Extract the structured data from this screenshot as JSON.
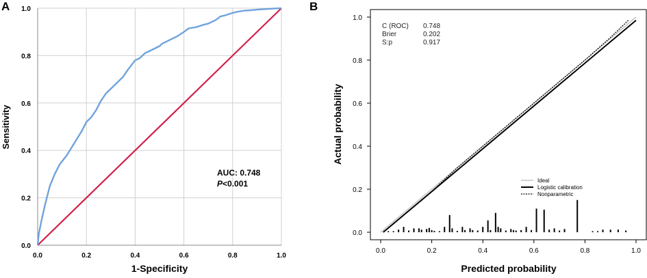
{
  "chart_data": [
    {
      "type": "line",
      "panel_label": "A",
      "title": "",
      "xlabel": "1-Specificity",
      "ylabel": "Sensitivity",
      "xlim": [
        0,
        1
      ],
      "ylim": [
        0,
        1
      ],
      "x_ticks": [
        "0.0",
        "0.2",
        "0.4",
        "0.6",
        "0.8",
        "1.0"
      ],
      "y_ticks": [
        "0.0",
        "0.2",
        "0.4",
        "0.6",
        "0.8",
        "1.0"
      ],
      "grid": true,
      "annotation": {
        "auc": "AUC: 0.748",
        "p_prefix": "P",
        "p_rest": "<0.001"
      },
      "colors": {
        "roc": "#6fa3dc",
        "reference": "#d21f4a",
        "grid": "#d0d0d0"
      },
      "series": [
        {
          "name": "ROC curve",
          "x": [
            0.0,
            0.005,
            0.015,
            0.03,
            0.05,
            0.07,
            0.09,
            0.12,
            0.15,
            0.18,
            0.2,
            0.22,
            0.24,
            0.26,
            0.28,
            0.3,
            0.31,
            0.33,
            0.35,
            0.37,
            0.4,
            0.42,
            0.44,
            0.46,
            0.48,
            0.5,
            0.51,
            0.53,
            0.55,
            0.57,
            0.6,
            0.62,
            0.65,
            0.68,
            0.7,
            0.73,
            0.75,
            0.77,
            0.8,
            0.82,
            0.85,
            0.88,
            0.9,
            0.93,
            0.96,
            0.98,
            1.0
          ],
          "y": [
            0.0,
            0.05,
            0.1,
            0.17,
            0.25,
            0.3,
            0.34,
            0.38,
            0.43,
            0.48,
            0.52,
            0.54,
            0.57,
            0.61,
            0.64,
            0.66,
            0.67,
            0.69,
            0.71,
            0.74,
            0.78,
            0.79,
            0.81,
            0.82,
            0.83,
            0.84,
            0.85,
            0.86,
            0.87,
            0.88,
            0.9,
            0.915,
            0.92,
            0.93,
            0.935,
            0.95,
            0.965,
            0.97,
            0.98,
            0.985,
            0.99,
            0.992,
            0.994,
            0.996,
            0.998,
            0.999,
            1.0
          ]
        },
        {
          "name": "Reference line",
          "x": [
            0.0,
            1.0
          ],
          "y": [
            0.0,
            1.0
          ]
        }
      ]
    },
    {
      "type": "line",
      "panel_label": "B",
      "title": "",
      "xlabel": "Predicted probability",
      "ylabel": "Actual probability",
      "xlim": [
        0,
        1
      ],
      "ylim": [
        0,
        1
      ],
      "x_ticks": [
        "0.0",
        "0.2",
        "0.4",
        "0.6",
        "0.8",
        "1.0"
      ],
      "y_ticks": [
        "0.0",
        "0.2",
        "0.4",
        "0.6",
        "0.8",
        "1.0"
      ],
      "grid": false,
      "stats": [
        {
          "label": "C (ROC)",
          "value": "0.748"
        },
        {
          "label": "Brier",
          "value": "0.202"
        },
        {
          "label": "S:p",
          "value": "0.917"
        }
      ],
      "legend": [
        "Ideal",
        "Logistic calibration",
        "Nonparametric"
      ],
      "series": [
        {
          "name": "Ideal",
          "x": [
            0.0,
            1.0
          ],
          "y": [
            0.0,
            1.0
          ]
        },
        {
          "name": "Logistic calibration",
          "x": [
            0.01,
            1.0
          ],
          "y": [
            0.0,
            0.985
          ]
        },
        {
          "name": "Nonparametric",
          "x": [
            0.03,
            0.1,
            0.2,
            0.3,
            0.4,
            0.5,
            0.6,
            0.7,
            0.8,
            0.9,
            0.97
          ],
          "y": [
            0.02,
            0.09,
            0.19,
            0.3,
            0.4,
            0.5,
            0.6,
            0.7,
            0.8,
            0.905,
            0.985
          ]
        }
      ],
      "rug": {
        "x": [
          0.03,
          0.05,
          0.07,
          0.09,
          0.11,
          0.13,
          0.15,
          0.16,
          0.18,
          0.19,
          0.2,
          0.21,
          0.23,
          0.25,
          0.27,
          0.28,
          0.3,
          0.32,
          0.33,
          0.35,
          0.36,
          0.38,
          0.4,
          0.42,
          0.43,
          0.45,
          0.46,
          0.47,
          0.49,
          0.51,
          0.52,
          0.53,
          0.55,
          0.57,
          0.59,
          0.61,
          0.64,
          0.66,
          0.68,
          0.7,
          0.72,
          0.77,
          0.83,
          0.85,
          0.87,
          0.9,
          0.93,
          0.96
        ],
        "h": [
          0.005,
          0.005,
          0.012,
          0.025,
          0.008,
          0.018,
          0.018,
          0.012,
          0.015,
          0.02,
          0.01,
          0.006,
          0.005,
          0.025,
          0.08,
          0.018,
          0.006,
          0.025,
          0.01,
          0.018,
          0.01,
          0.008,
          0.025,
          0.055,
          0.01,
          0.09,
          0.025,
          0.018,
          0.008,
          0.015,
          0.01,
          0.008,
          0.01,
          0.025,
          0.01,
          0.11,
          0.105,
          0.012,
          0.018,
          0.008,
          0.015,
          0.15,
          0.005,
          0.005,
          0.012,
          0.012,
          0.012,
          0.008
        ]
      }
    }
  ]
}
